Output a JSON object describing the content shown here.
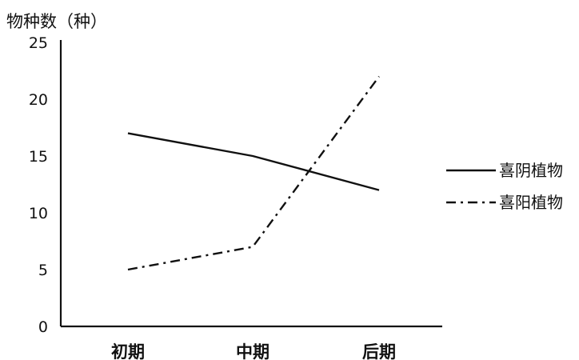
{
  "chart_data": {
    "type": "line",
    "title": "",
    "ylabel": "物种数（种）",
    "xlabel": "",
    "categories": [
      "初期",
      "中期",
      "后期"
    ],
    "ylim": [
      0,
      25
    ],
    "yticks": [
      0,
      5,
      10,
      15,
      20,
      25
    ],
    "grid": false,
    "legend_position": "right",
    "series": [
      {
        "name": "喜阴植物",
        "values": [
          17,
          15,
          12
        ],
        "line_style": "solid",
        "color": "#111111"
      },
      {
        "name": "喜阳植物",
        "values": [
          5,
          7,
          22
        ],
        "line_style": "dash-dot",
        "color": "#111111"
      }
    ]
  }
}
